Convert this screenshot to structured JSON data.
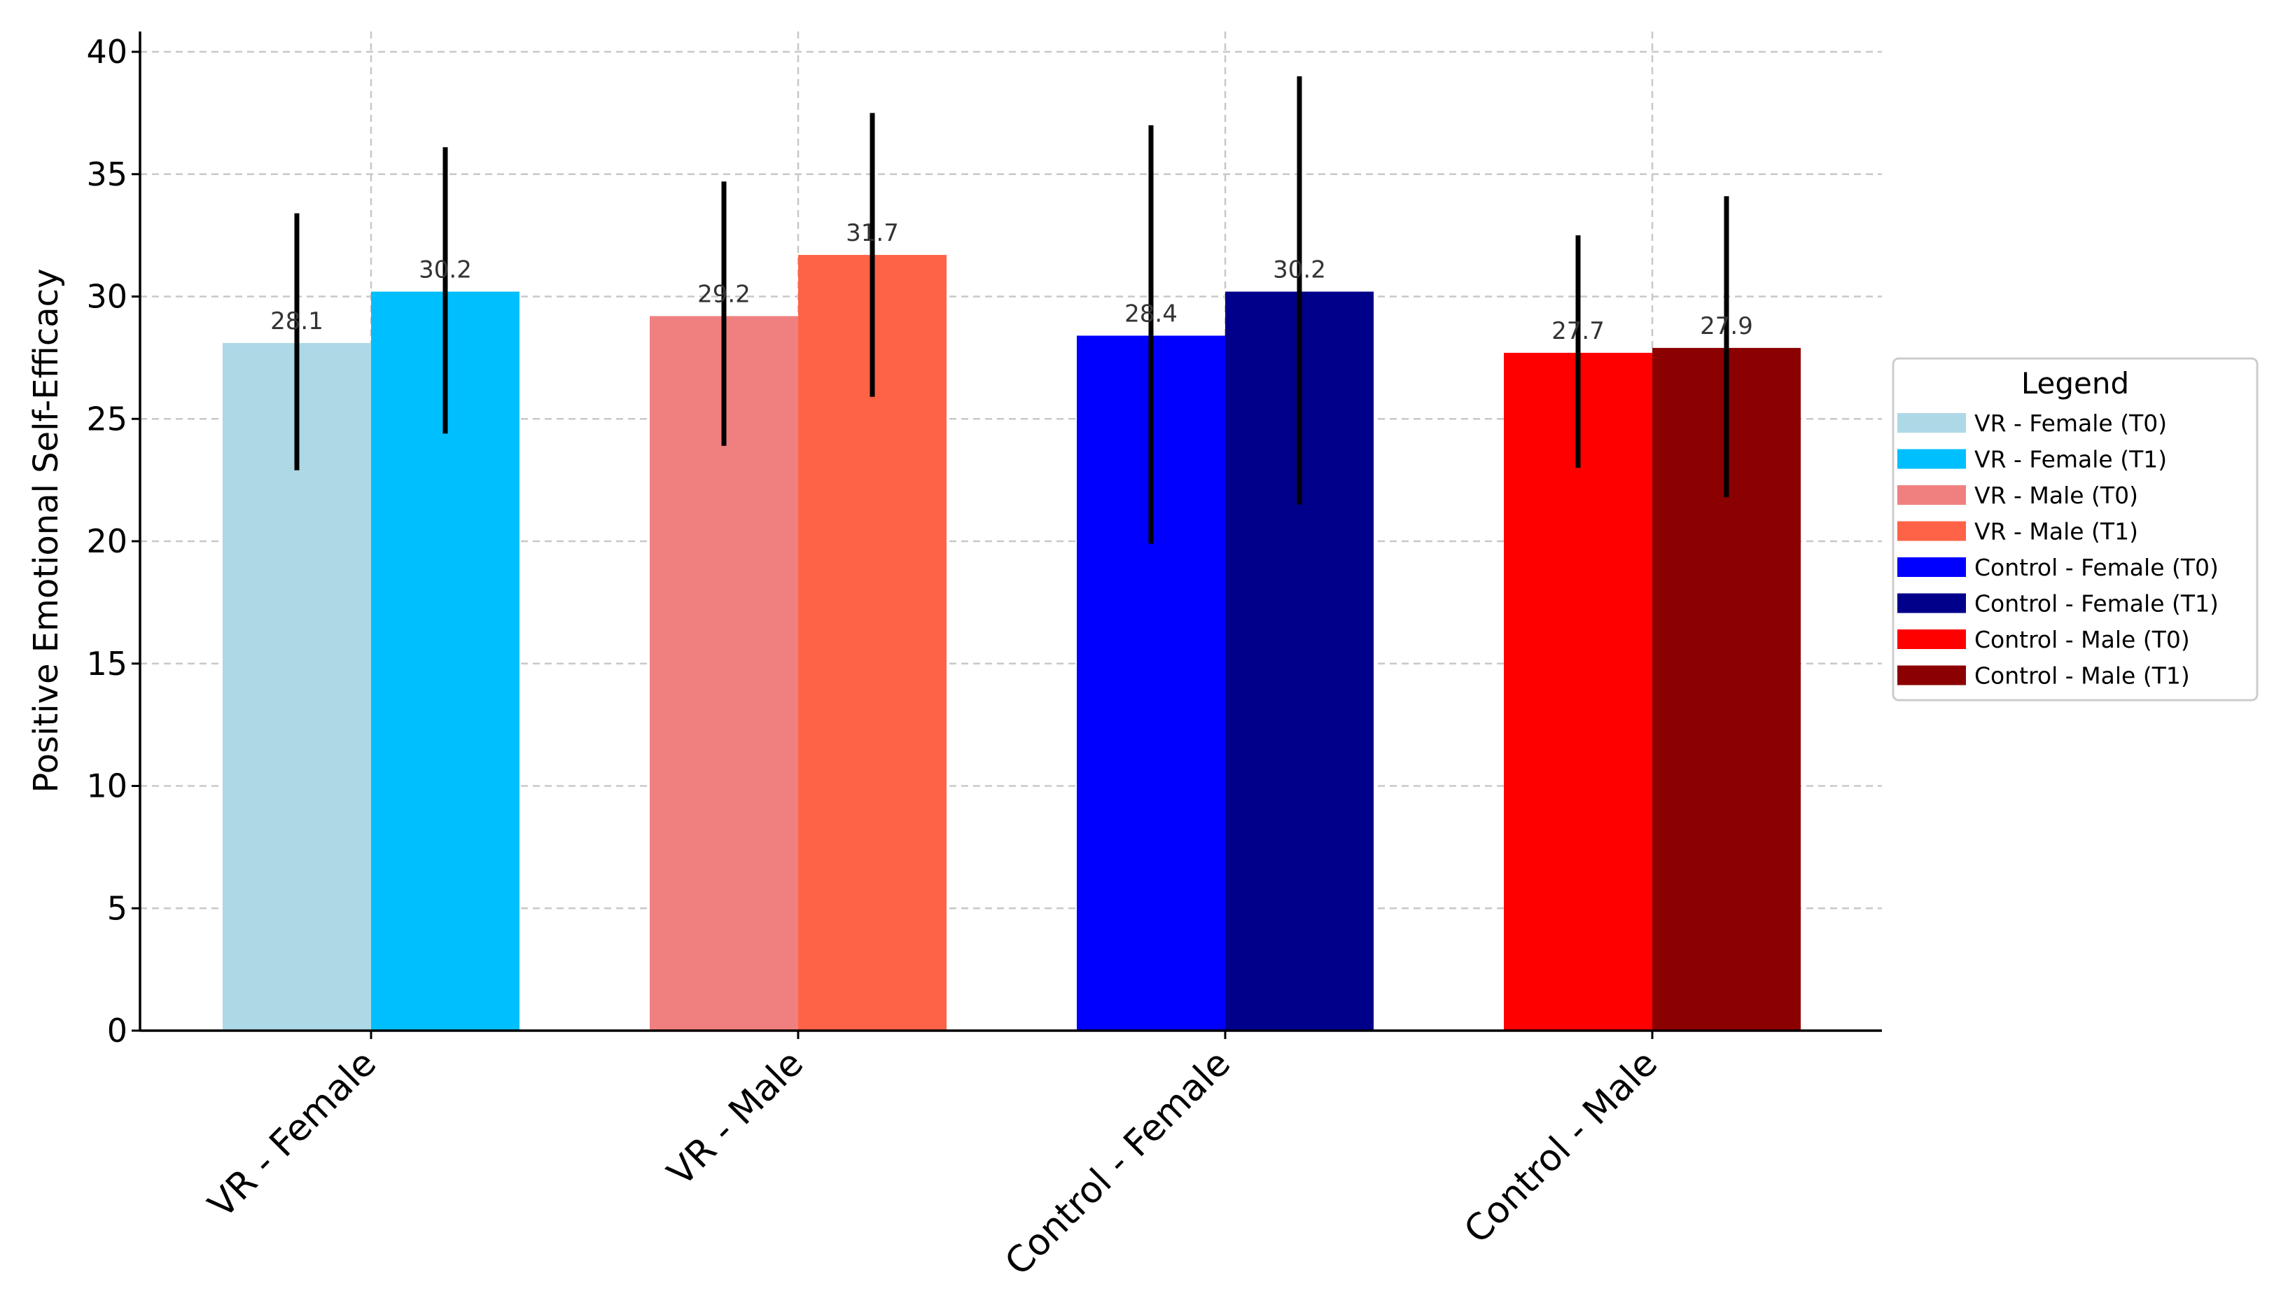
{
  "chart_data": {
    "type": "bar",
    "title": "",
    "xlabel": "",
    "ylabel": "Positive Emotional Self-Efficacy",
    "ylim": [
      0,
      40
    ],
    "yticks": [
      0,
      5,
      10,
      15,
      20,
      25,
      30,
      35,
      40
    ],
    "grid": true,
    "categories": [
      "VR - Female",
      "VR - Male",
      "Control - Female",
      "Control - Male"
    ],
    "bars": [
      {
        "category": "VR - Female",
        "name": "VR - Female (T0)",
        "value": 28.1,
        "label": "28.1",
        "err_low": 22.9,
        "err_high": 33.4,
        "color": "#add8e6"
      },
      {
        "category": "VR - Female",
        "name": "VR - Female (T1)",
        "value": 30.2,
        "label": "30.2",
        "err_low": 24.4,
        "err_high": 36.1,
        "color": "#00bfff"
      },
      {
        "category": "VR - Male",
        "name": "VR - Male (T0)",
        "value": 29.2,
        "label": "29.2",
        "err_low": 23.9,
        "err_high": 34.7,
        "color": "#f08080"
      },
      {
        "category": "VR - Male",
        "name": "VR - Male (T1)",
        "value": 31.7,
        "label": "31.7",
        "err_low": 25.9,
        "err_high": 37.5,
        "color": "#ff6347"
      },
      {
        "category": "Control - Female",
        "name": "Control - Female (T0)",
        "value": 28.4,
        "label": "28.4",
        "err_low": 19.9,
        "err_high": 37.0,
        "color": "#0000ff"
      },
      {
        "category": "Control - Female",
        "name": "Control - Female (T1)",
        "value": 30.2,
        "label": "30.2",
        "err_low": 21.5,
        "err_high": 39.0,
        "color": "#00008b"
      },
      {
        "category": "Control - Male",
        "name": "Control - Male (T0)",
        "value": 27.7,
        "label": "27.7",
        "err_low": 23.0,
        "err_high": 32.5,
        "color": "#ff0000"
      },
      {
        "category": "Control - Male",
        "name": "Control - Male (T1)",
        "value": 27.9,
        "label": "27.9",
        "err_low": 21.8,
        "err_high": 34.1,
        "color": "#8b0000"
      }
    ],
    "legend": {
      "title": "Legend",
      "placement": "center-right",
      "entries": [
        {
          "label": "VR - Female (T0)",
          "color": "#add8e6"
        },
        {
          "label": "VR - Female (T1)",
          "color": "#00bfff"
        },
        {
          "label": "VR - Male (T0)",
          "color": "#f08080"
        },
        {
          "label": "VR - Male (T1)",
          "color": "#ff6347"
        },
        {
          "label": "Control - Female (T0)",
          "color": "#0000ff"
        },
        {
          "label": "Control - Female (T1)",
          "color": "#00008b"
        },
        {
          "label": "Control - Male (T0)",
          "color": "#ff0000"
        },
        {
          "label": "Control - Male (T1)",
          "color": "#8b0000"
        }
      ]
    }
  }
}
